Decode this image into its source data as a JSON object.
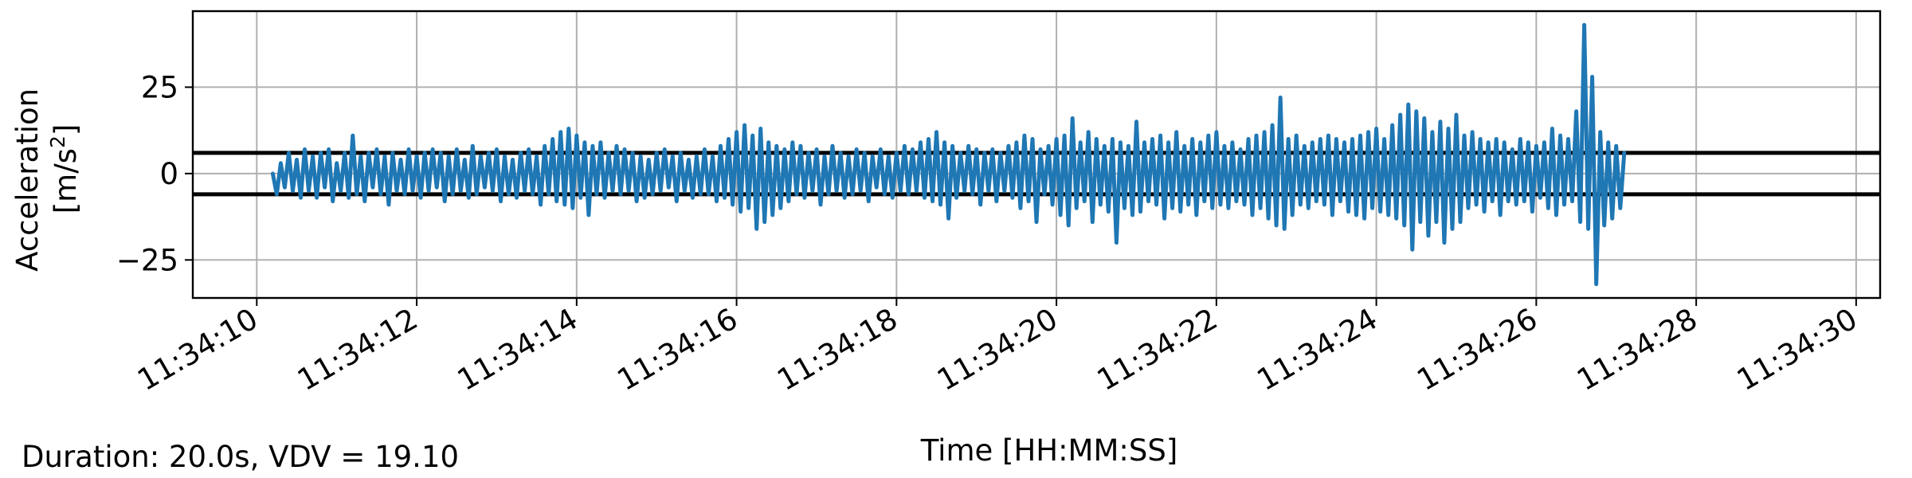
{
  "footer_note": "Duration: 20.0s, VDV = 19.10",
  "colors": {
    "series": "#1f77b4",
    "threshold": "#000000",
    "grid": "#b0b0b0"
  },
  "chart_data": {
    "type": "line",
    "title": "",
    "xlabel": "Time [HH:MM:SS]",
    "ylabel_lines": [
      "Acceleration",
      "[m/s",
      "2",
      "]"
    ],
    "xlim": [
      9.2,
      30.3
    ],
    "ylim": [
      -36,
      47
    ],
    "x_ticks": [
      10,
      12,
      14,
      16,
      18,
      20,
      22,
      24,
      26,
      28,
      30
    ],
    "x_tick_labels": [
      "11:34:10",
      "11:34:12",
      "11:34:14",
      "11:34:16",
      "11:34:18",
      "11:34:20",
      "11:34:22",
      "11:34:24",
      "11:34:26",
      "11:34:28",
      "11:34:30"
    ],
    "y_ticks": [
      25,
      0,
      -25
    ],
    "y_tick_labels": [
      "25",
      "0",
      "−25"
    ],
    "grid": true,
    "legend": "none",
    "hlines": [
      6,
      -6
    ],
    "series": [
      {
        "x_start": 10.2,
        "x_step": 0.05,
        "values": [
          0,
          -6,
          3,
          -4,
          6,
          -5,
          4,
          -7,
          7,
          -5,
          5,
          -7,
          6,
          -4,
          7,
          -8,
          3,
          -5,
          6,
          -7,
          11,
          -6,
          5,
          -8,
          6,
          -4,
          7,
          -6,
          5,
          -9,
          6,
          -5,
          4,
          -6,
          7,
          -5,
          5,
          -7,
          6,
          -5,
          7,
          -4,
          6,
          -8,
          5,
          -6,
          7,
          -5,
          4,
          -7,
          8,
          -6,
          5,
          -4,
          6,
          -5,
          7,
          -8,
          5,
          -6,
          4,
          -7,
          6,
          -5,
          7,
          -6,
          5,
          -9,
          8,
          -6,
          10,
          -8,
          12,
          -9,
          13,
          -10,
          11,
          -7,
          9,
          -12,
          8,
          -6,
          9,
          -7,
          6,
          -5,
          8,
          -6,
          7,
          -5,
          6,
          -8,
          5,
          -7,
          4,
          -6,
          6,
          -5,
          7,
          -4,
          5,
          -8,
          6,
          -5,
          4,
          -7,
          5,
          -6,
          7,
          -6,
          5,
          -8,
          8,
          -7,
          10,
          -9,
          12,
          -11,
          14,
          -10,
          11,
          -16,
          13,
          -14,
          9,
          -12,
          8,
          -10,
          7,
          -8,
          9,
          -6,
          8,
          -7,
          6,
          -5,
          7,
          -9,
          5,
          -6,
          8,
          -5,
          6,
          -7,
          5,
          -6,
          7,
          -5,
          6,
          -8,
          5,
          -4,
          7,
          -6,
          5,
          -7,
          6,
          -5,
          8,
          -6,
          7,
          -5,
          9,
          -7,
          10,
          -8,
          12,
          -9,
          9,
          -13,
          8,
          -7,
          6,
          -5,
          8,
          -6,
          7,
          -9,
          6,
          -5,
          7,
          -8,
          6,
          -5,
          8,
          -7,
          9,
          -10,
          11,
          -8,
          10,
          -14,
          7,
          -6,
          8,
          -9,
          10,
          -12,
          11,
          -15,
          16,
          -10,
          9,
          -8,
          12,
          -14,
          10,
          -9,
          8,
          -11,
          10,
          -20,
          9,
          -10,
          8,
          -12,
          15,
          -11,
          9,
          -8,
          10,
          -9,
          11,
          -13,
          9,
          -10,
          12,
          -11,
          8,
          -9,
          10,
          -12,
          9,
          -8,
          11,
          -10,
          12,
          -9,
          8,
          -10,
          9,
          -8,
          7,
          -9,
          10,
          -12,
          11,
          -10,
          12,
          -13,
          14,
          -15,
          22,
          -16,
          10,
          -12,
          11,
          -9,
          8,
          -10,
          9,
          -8,
          10,
          -9,
          11,
          -12,
          10,
          -8,
          9,
          -11,
          10,
          -12,
          11,
          -13,
          12,
          -10,
          13,
          -11,
          10,
          -12,
          14,
          -13,
          17,
          -15,
          20,
          -22,
          18,
          -14,
          16,
          -18,
          12,
          -14,
          15,
          -20,
          13,
          -16,
          17,
          -14,
          11,
          -10,
          12,
          -9,
          10,
          -11,
          9,
          -8,
          10,
          -12,
          9,
          -8,
          7,
          -9,
          10,
          -8,
          9,
          -11,
          8,
          -7,
          9,
          -10,
          13,
          -12,
          11,
          -9,
          10,
          -8,
          18,
          -14,
          43,
          -16,
          28,
          -32,
          12,
          -15,
          9,
          -13,
          8,
          -10,
          6
        ]
      }
    ]
  }
}
